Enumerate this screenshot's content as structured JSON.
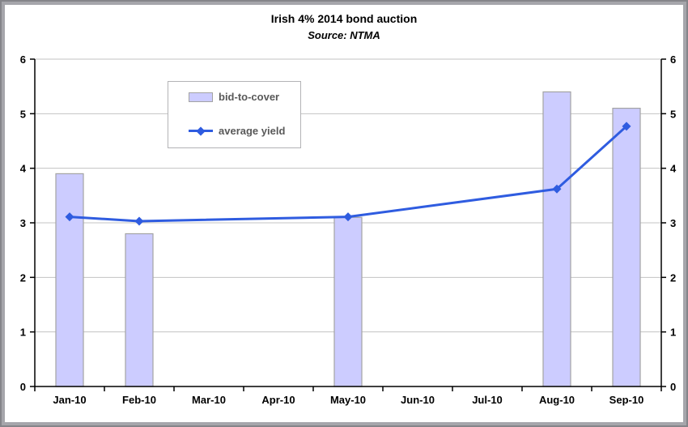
{
  "title": "Irish 4% 2014 bond auction",
  "subtitle": "Source: NTMA",
  "legend": {
    "items": [
      {
        "label": "bid-to-cover",
        "marker": "bar-swatch"
      },
      {
        "label": "average yield",
        "marker": "line-diamond-swatch"
      }
    ]
  },
  "colors": {
    "bar_fill": "#ccccff",
    "bar_border": "#a3a3a3",
    "line": "#2f5ce0",
    "gridline": "#c3c3c3",
    "axis": "#000000",
    "legend_text": "#595959",
    "frame_outer": "#85858a",
    "frame_inner": "#a6a6ab"
  },
  "chart_data": {
    "type": "bar",
    "combo": "bar series plus line series with diamond markers, identical left and right y-axes",
    "title": "Irish 4% 2014 bond auction",
    "subtitle": "Source: NTMA",
    "categories": [
      "Jan-10",
      "Feb-10",
      "Mar-10",
      "Apr-10",
      "May-10",
      "Jun-10",
      "Jul-10",
      "Aug-10",
      "Sep-10"
    ],
    "series": [
      {
        "name": "bid-to-cover",
        "type": "bar",
        "values": [
          3.9,
          2.8,
          null,
          null,
          3.1,
          null,
          null,
          5.4,
          5.1
        ]
      },
      {
        "name": "average yield",
        "type": "line",
        "marker": "diamond",
        "values": [
          3.11,
          3.03,
          null,
          null,
          3.11,
          null,
          null,
          3.62,
          4.77
        ]
      }
    ],
    "xlabel": "",
    "ylabel": "",
    "ylim": [
      0,
      6
    ],
    "yticks": [
      0,
      1,
      2,
      3,
      4,
      5,
      6
    ],
    "grid": true,
    "legend_position": "inside-top-left",
    "dual_axis": true
  }
}
